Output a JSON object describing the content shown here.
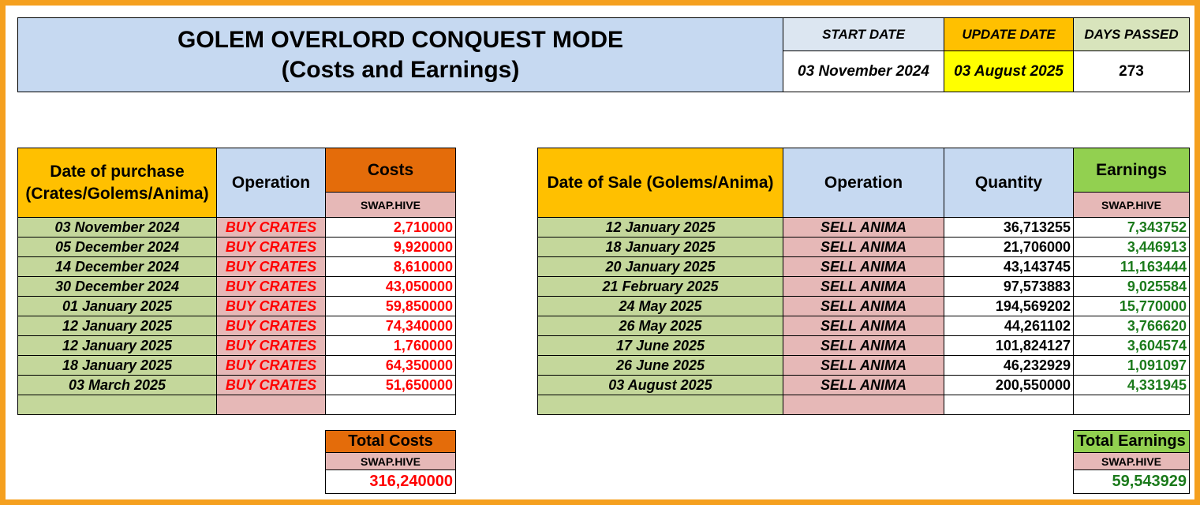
{
  "title": {
    "line1": "GOLEM OVERLORD CONQUEST MODE",
    "line2": "(Costs and Earnings)"
  },
  "summary": {
    "start_label": "START DATE",
    "update_label": "UPDATE DATE",
    "days_label": "DAYS PASSED",
    "start_value": "03 November 2024",
    "update_value": "03 August 2025",
    "days_value": "273"
  },
  "purchases": {
    "headers": {
      "date": "Date of purchase (Crates/Golems/Anima)",
      "operation": "Operation",
      "costs": "Costs",
      "unit": "SWAP.HIVE"
    },
    "rows": [
      {
        "date": "03 November 2024",
        "operation": "BUY CRATES",
        "cost": "2,710000"
      },
      {
        "date": "05 December 2024",
        "operation": "BUY CRATES",
        "cost": "9,920000"
      },
      {
        "date": "14 December 2024",
        "operation": "BUY CRATES",
        "cost": "8,610000"
      },
      {
        "date": "30 December 2024",
        "operation": "BUY CRATES",
        "cost": "43,050000"
      },
      {
        "date": "01 January 2025",
        "operation": "BUY CRATES",
        "cost": "59,850000"
      },
      {
        "date": "12 January 2025",
        "operation": "BUY CRATES",
        "cost": "74,340000"
      },
      {
        "date": "12 January 2025",
        "operation": "BUY CRATES",
        "cost": "1,760000"
      },
      {
        "date": "18 January 2025",
        "operation": "BUY CRATES",
        "cost": "64,350000"
      },
      {
        "date": "03 March 2025",
        "operation": "BUY CRATES",
        "cost": "51,650000"
      },
      {
        "date": "",
        "operation": "",
        "cost": ""
      }
    ],
    "total": {
      "label": "Total Costs",
      "unit": "SWAP.HIVE",
      "value": "316,240000"
    }
  },
  "sales": {
    "headers": {
      "date": "Date of Sale (Golems/Anima)",
      "operation": "Operation",
      "quantity": "Quantity",
      "earnings": "Earnings",
      "unit": "SWAP.HIVE"
    },
    "rows": [
      {
        "date": "12 January 2025",
        "operation": "SELL ANIMA",
        "quantity": "36,713255",
        "earning": "7,343752"
      },
      {
        "date": "18 January 2025",
        "operation": "SELL ANIMA",
        "quantity": "21,706000",
        "earning": "3,446913"
      },
      {
        "date": "20 January 2025",
        "operation": "SELL ANIMA",
        "quantity": "43,143745",
        "earning": "11,163444"
      },
      {
        "date": "21 February 2025",
        "operation": "SELL ANIMA",
        "quantity": "97,573883",
        "earning": "9,025584"
      },
      {
        "date": "24 May 2025",
        "operation": "SELL ANIMA",
        "quantity": "194,569202",
        "earning": "15,770000"
      },
      {
        "date": "26 May 2025",
        "operation": "SELL ANIMA",
        "quantity": "44,261102",
        "earning": "3,766620"
      },
      {
        "date": "17 June 2025",
        "operation": "SELL ANIMA",
        "quantity": "101,824127",
        "earning": "3,604574"
      },
      {
        "date": "26 June 2025",
        "operation": "SELL ANIMA",
        "quantity": "46,232929",
        "earning": "1,091097"
      },
      {
        "date": "03 August 2025",
        "operation": "SELL ANIMA",
        "quantity": "200,550000",
        "earning": "4,331945"
      },
      {
        "date": "",
        "operation": "",
        "quantity": "",
        "earning": ""
      }
    ],
    "total": {
      "label": "Total Earnings",
      "unit": "SWAP.HIVE",
      "value": "59,543929"
    }
  },
  "colors": {
    "frame": "#f5a01f",
    "header_blue": "#c6d9f1",
    "header_gold": "#ffc000",
    "costs_orange": "#e46c0a",
    "earnings_green": "#92d050",
    "op_pink": "#e6b8b7",
    "date_green": "#c4d79b",
    "update_yellow": "#ffff00",
    "cost_red": "#ff0000",
    "earning_green": "#1b7a1b"
  }
}
